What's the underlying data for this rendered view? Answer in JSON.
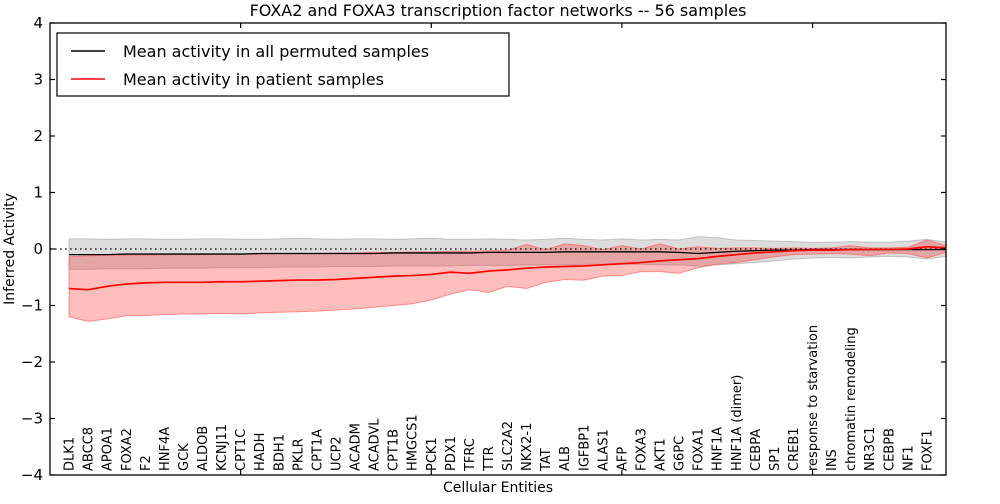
{
  "figure": {
    "title": "FOXA2 and FOXA3 transcription factor networks -- 56 samples",
    "xlabel": "Cellular Entities",
    "ylabel": "Inferred Activity",
    "y_tick_labels": [
      "4",
      "3",
      "2",
      "1",
      "0",
      "−1",
      "−2",
      "−3",
      "−4"
    ],
    "legend": [
      {
        "label": "Mean activity in all permuted samples",
        "color": "#000000"
      },
      {
        "label": "Mean activity in patient samples",
        "color": "#ff0000"
      }
    ],
    "colors": {
      "frame": "#000000",
      "zero_line": "#000000",
      "permuted_line": "#000000",
      "patient_line": "#ff0000",
      "permuted_band": "rgba(130,130,130,0.28)",
      "patient_band": "rgba(255,40,40,0.30)",
      "patient_band_edge": "rgba(255,90,90,0.65)",
      "permuted_band_edge": "rgba(150,150,150,0.5)"
    }
  },
  "chart_data": {
    "type": "line",
    "title": "FOXA2 and FOXA3 transcription factor networks -- 56 samples",
    "xlabel": "Cellular Entities",
    "ylabel": "Inferred Activity",
    "ylim": [
      -4,
      4
    ],
    "xlim": [
      0,
      47
    ],
    "y_ticks": [
      4,
      3,
      2,
      1,
      0,
      -1,
      -2,
      -3,
      -4
    ],
    "x_major_tick_units": [
      10,
      20,
      30,
      40
    ],
    "grid": false,
    "zero_line_style": "dotted",
    "legend_position": "upper left",
    "categories": [
      "DLK1",
      "ABCC8",
      "APOA1",
      "FOXA2",
      "F2",
      "HNF4A",
      "GCK",
      "ALDOB",
      "KCNJ11",
      "CPT1C",
      "HADH",
      "BDH1",
      "PKLR",
      "CPT1A",
      "UCP2",
      "ACADM",
      "ACADVL",
      "CPT1B",
      "HMGCS1",
      "PCK1",
      "PDX1",
      "TFRC",
      "TTR",
      "SLC2A2",
      "NKX2-1",
      "TAT",
      "ALB",
      "IGFBP1",
      "ALAS1",
      "AFP",
      "FOXA3",
      "AKT1",
      "G6PC",
      "FOXA1",
      "HNF1A",
      "HNF1A (dimer)",
      "CEBPA",
      "SP1",
      "CREB1",
      "response to starvation",
      "INS",
      "chromatin remodeling",
      "NR3C1",
      "CEBPB",
      "NF1",
      "FOXF1"
    ],
    "series": [
      {
        "name": "Mean activity in all permuted samples",
        "line_color": "#000000",
        "line_width": 1.3,
        "values": [
          -0.1,
          -0.1,
          -0.1,
          -0.09,
          -0.09,
          -0.09,
          -0.09,
          -0.09,
          -0.09,
          -0.09,
          -0.08,
          -0.08,
          -0.08,
          -0.08,
          -0.08,
          -0.08,
          -0.08,
          -0.07,
          -0.07,
          -0.07,
          -0.07,
          -0.07,
          -0.06,
          -0.06,
          -0.06,
          -0.06,
          -0.05,
          -0.05,
          -0.05,
          -0.05,
          -0.05,
          -0.05,
          -0.06,
          -0.08,
          -0.06,
          -0.04,
          -0.03,
          -0.02,
          -0.02,
          -0.01,
          -0.01,
          -0.01,
          -0.01,
          -0.01,
          -0.01,
          -0.01
        ],
        "band_upper": [
          0.18,
          0.18,
          0.17,
          0.18,
          0.18,
          0.17,
          0.17,
          0.18,
          0.18,
          0.17,
          0.17,
          0.18,
          0.19,
          0.18,
          0.17,
          0.18,
          0.18,
          0.17,
          0.18,
          0.19,
          0.17,
          0.17,
          0.18,
          0.17,
          0.16,
          0.17,
          0.19,
          0.17,
          0.16,
          0.18,
          0.16,
          0.17,
          0.16,
          0.22,
          0.2,
          0.16,
          0.15,
          0.14,
          0.13,
          0.12,
          0.12,
          0.13,
          0.12,
          0.12,
          0.14,
          0.17
        ],
        "band_lower": [
          -0.36,
          -0.36,
          -0.35,
          -0.35,
          -0.35,
          -0.34,
          -0.34,
          -0.34,
          -0.33,
          -0.33,
          -0.33,
          -0.32,
          -0.32,
          -0.32,
          -0.31,
          -0.31,
          -0.31,
          -0.3,
          -0.3,
          -0.3,
          -0.3,
          -0.29,
          -0.29,
          -0.29,
          -0.28,
          -0.28,
          -0.28,
          -0.27,
          -0.27,
          -0.27,
          -0.27,
          -0.28,
          -0.28,
          -0.3,
          -0.28,
          -0.26,
          -0.24,
          -0.21,
          -0.18,
          -0.16,
          -0.15,
          -0.16,
          -0.14,
          -0.13,
          -0.14,
          -0.18
        ],
        "edge_end": {
          "mean": -0.01,
          "upper": 0.12,
          "lower": -0.13
        }
      },
      {
        "name": "Mean activity in patient samples",
        "line_color": "#ff0000",
        "line_width": 1.7,
        "values": [
          -0.7,
          -0.72,
          -0.66,
          -0.62,
          -0.6,
          -0.59,
          -0.59,
          -0.59,
          -0.58,
          -0.58,
          -0.57,
          -0.56,
          -0.55,
          -0.55,
          -0.54,
          -0.52,
          -0.5,
          -0.48,
          -0.47,
          -0.45,
          -0.41,
          -0.43,
          -0.39,
          -0.37,
          -0.34,
          -0.32,
          -0.31,
          -0.3,
          -0.28,
          -0.26,
          -0.24,
          -0.21,
          -0.19,
          -0.17,
          -0.13,
          -0.1,
          -0.07,
          -0.05,
          -0.03,
          -0.02,
          -0.02,
          -0.01,
          -0.01,
          -0.01,
          0.0,
          0.04
        ],
        "band_upper": [
          -0.14,
          -0.12,
          -0.11,
          -0.11,
          -0.11,
          -0.1,
          -0.1,
          -0.1,
          -0.09,
          -0.09,
          -0.09,
          -0.08,
          -0.08,
          -0.08,
          -0.07,
          -0.07,
          -0.06,
          -0.06,
          -0.05,
          -0.05,
          -0.04,
          -0.04,
          -0.03,
          -0.02,
          0.08,
          -0.01,
          0.09,
          0.06,
          -0.01,
          0.06,
          0.0,
          0.09,
          0.0,
          0.04,
          0.01,
          0.02,
          0.02,
          0.01,
          0.02,
          0.01,
          0.02,
          0.06,
          0.02,
          0.02,
          0.03,
          0.16
        ],
        "band_lower": [
          -1.2,
          -1.28,
          -1.24,
          -1.18,
          -1.18,
          -1.16,
          -1.15,
          -1.15,
          -1.14,
          -1.15,
          -1.13,
          -1.12,
          -1.11,
          -1.1,
          -1.08,
          -1.06,
          -1.03,
          -1.0,
          -0.97,
          -0.9,
          -0.8,
          -0.72,
          -0.77,
          -0.66,
          -0.7,
          -0.59,
          -0.54,
          -0.55,
          -0.48,
          -0.47,
          -0.4,
          -0.4,
          -0.43,
          -0.33,
          -0.27,
          -0.24,
          -0.19,
          -0.14,
          -0.1,
          -0.09,
          -0.08,
          -0.09,
          -0.12,
          -0.07,
          -0.08,
          -0.16
        ],
        "edge_end": {
          "mean": 0.02,
          "upper": 0.06,
          "lower": -0.06
        }
      }
    ]
  }
}
